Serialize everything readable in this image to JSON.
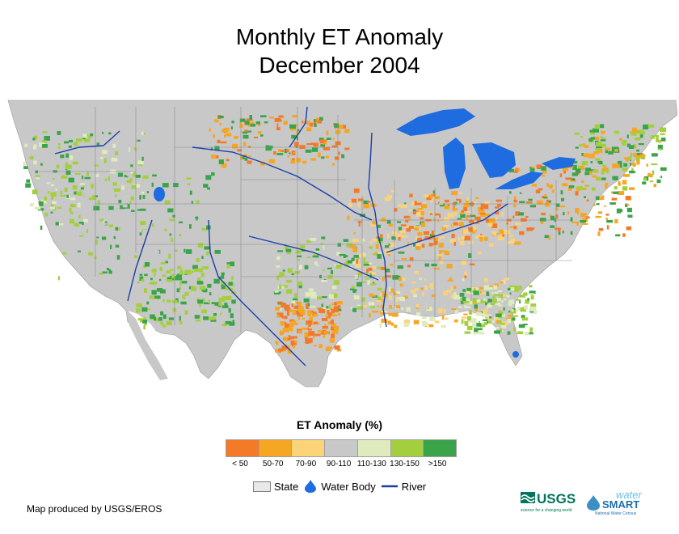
{
  "title": {
    "line1": "Monthly ET Anomaly",
    "line2": "December 2004"
  },
  "legend": {
    "title": "ET Anomaly (%)",
    "classes": [
      {
        "label": "< 50",
        "color": "#f47a28"
      },
      {
        "label": "50-70",
        "color": "#f5a623"
      },
      {
        "label": "70-90",
        "color": "#fdd37a"
      },
      {
        "label": "90-110",
        "color": "#c8c8c8"
      },
      {
        "label": "110-130",
        "color": "#dfebbd"
      },
      {
        "label": "130-150",
        "color": "#a3cf3e"
      },
      {
        "label": ">150",
        "color": "#3aa44a"
      }
    ]
  },
  "key": {
    "state": "State",
    "water_body": "Water Body",
    "river": "River"
  },
  "colors": {
    "water": "#1f6be0",
    "river": "#1a3fa8",
    "land": "#c8c8c8"
  },
  "credit": "Map produced by USGS/EROS",
  "logos": {
    "usgs": "USGS",
    "usgs_tagline": "science for a changing world",
    "water": "water",
    "smart": "SMART",
    "water_tagline": "National Water Census"
  }
}
